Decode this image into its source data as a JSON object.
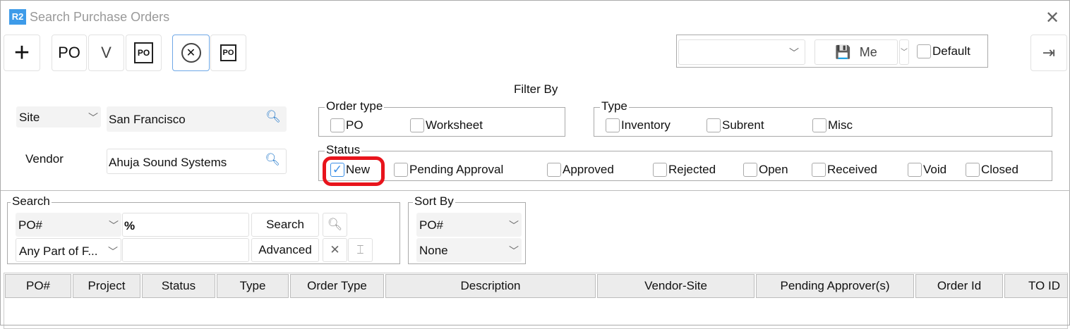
{
  "window": {
    "title": "Search Purchase Orders",
    "logo": "R2",
    "close_icon": "close-icon"
  },
  "toolbar": {
    "add": "+",
    "po": "PO",
    "vendor": "V",
    "po_search": "PO",
    "cancel_icon": "circle-x-icon",
    "po_export": "PO"
  },
  "layout_bar": {
    "layout_value": "",
    "save_label": "Me",
    "default_label": "Default",
    "default_checked": false,
    "exit_icon": "exit-icon"
  },
  "filter": {
    "title": "Filter By",
    "site_label": "Site",
    "site_value": "San Francisco",
    "vendor_label": "Vendor",
    "vendor_value": "Ahuja Sound Systems",
    "order_type": {
      "label": "Order type",
      "options": [
        {
          "label": "PO",
          "checked": false
        },
        {
          "label": "Worksheet",
          "checked": false
        }
      ]
    },
    "type": {
      "label": "Type",
      "options": [
        {
          "label": "Inventory",
          "checked": false
        },
        {
          "label": "Subrent",
          "checked": false
        },
        {
          "label": "Misc",
          "checked": false
        }
      ]
    },
    "status": {
      "label": "Status",
      "options": [
        {
          "label": "New",
          "checked": true
        },
        {
          "label": "Pending Approval",
          "checked": false
        },
        {
          "label": "Approved",
          "checked": false
        },
        {
          "label": "Rejected",
          "checked": false
        },
        {
          "label": "Open",
          "checked": false
        },
        {
          "label": "Received",
          "checked": false
        },
        {
          "label": "Void",
          "checked": false
        },
        {
          "label": "Closed",
          "checked": false
        }
      ]
    }
  },
  "search": {
    "label": "Search",
    "field": "PO#",
    "value": "%",
    "match": "Any Part of F...",
    "value2": "",
    "search_btn": "Search",
    "advanced_btn": "Advanced"
  },
  "sort": {
    "label": "Sort By",
    "first": "PO#",
    "second": "None"
  },
  "table": {
    "columns": [
      "PO#",
      "Project",
      "Status",
      "Type",
      "Order Type",
      "Description",
      "Vendor-Site",
      "Pending Approver(s)",
      "Order Id",
      "TO ID"
    ]
  },
  "colors": {
    "highlight": "#e8141c",
    "logo_bg": "#3d9be9",
    "check": "#3a8ee6"
  }
}
